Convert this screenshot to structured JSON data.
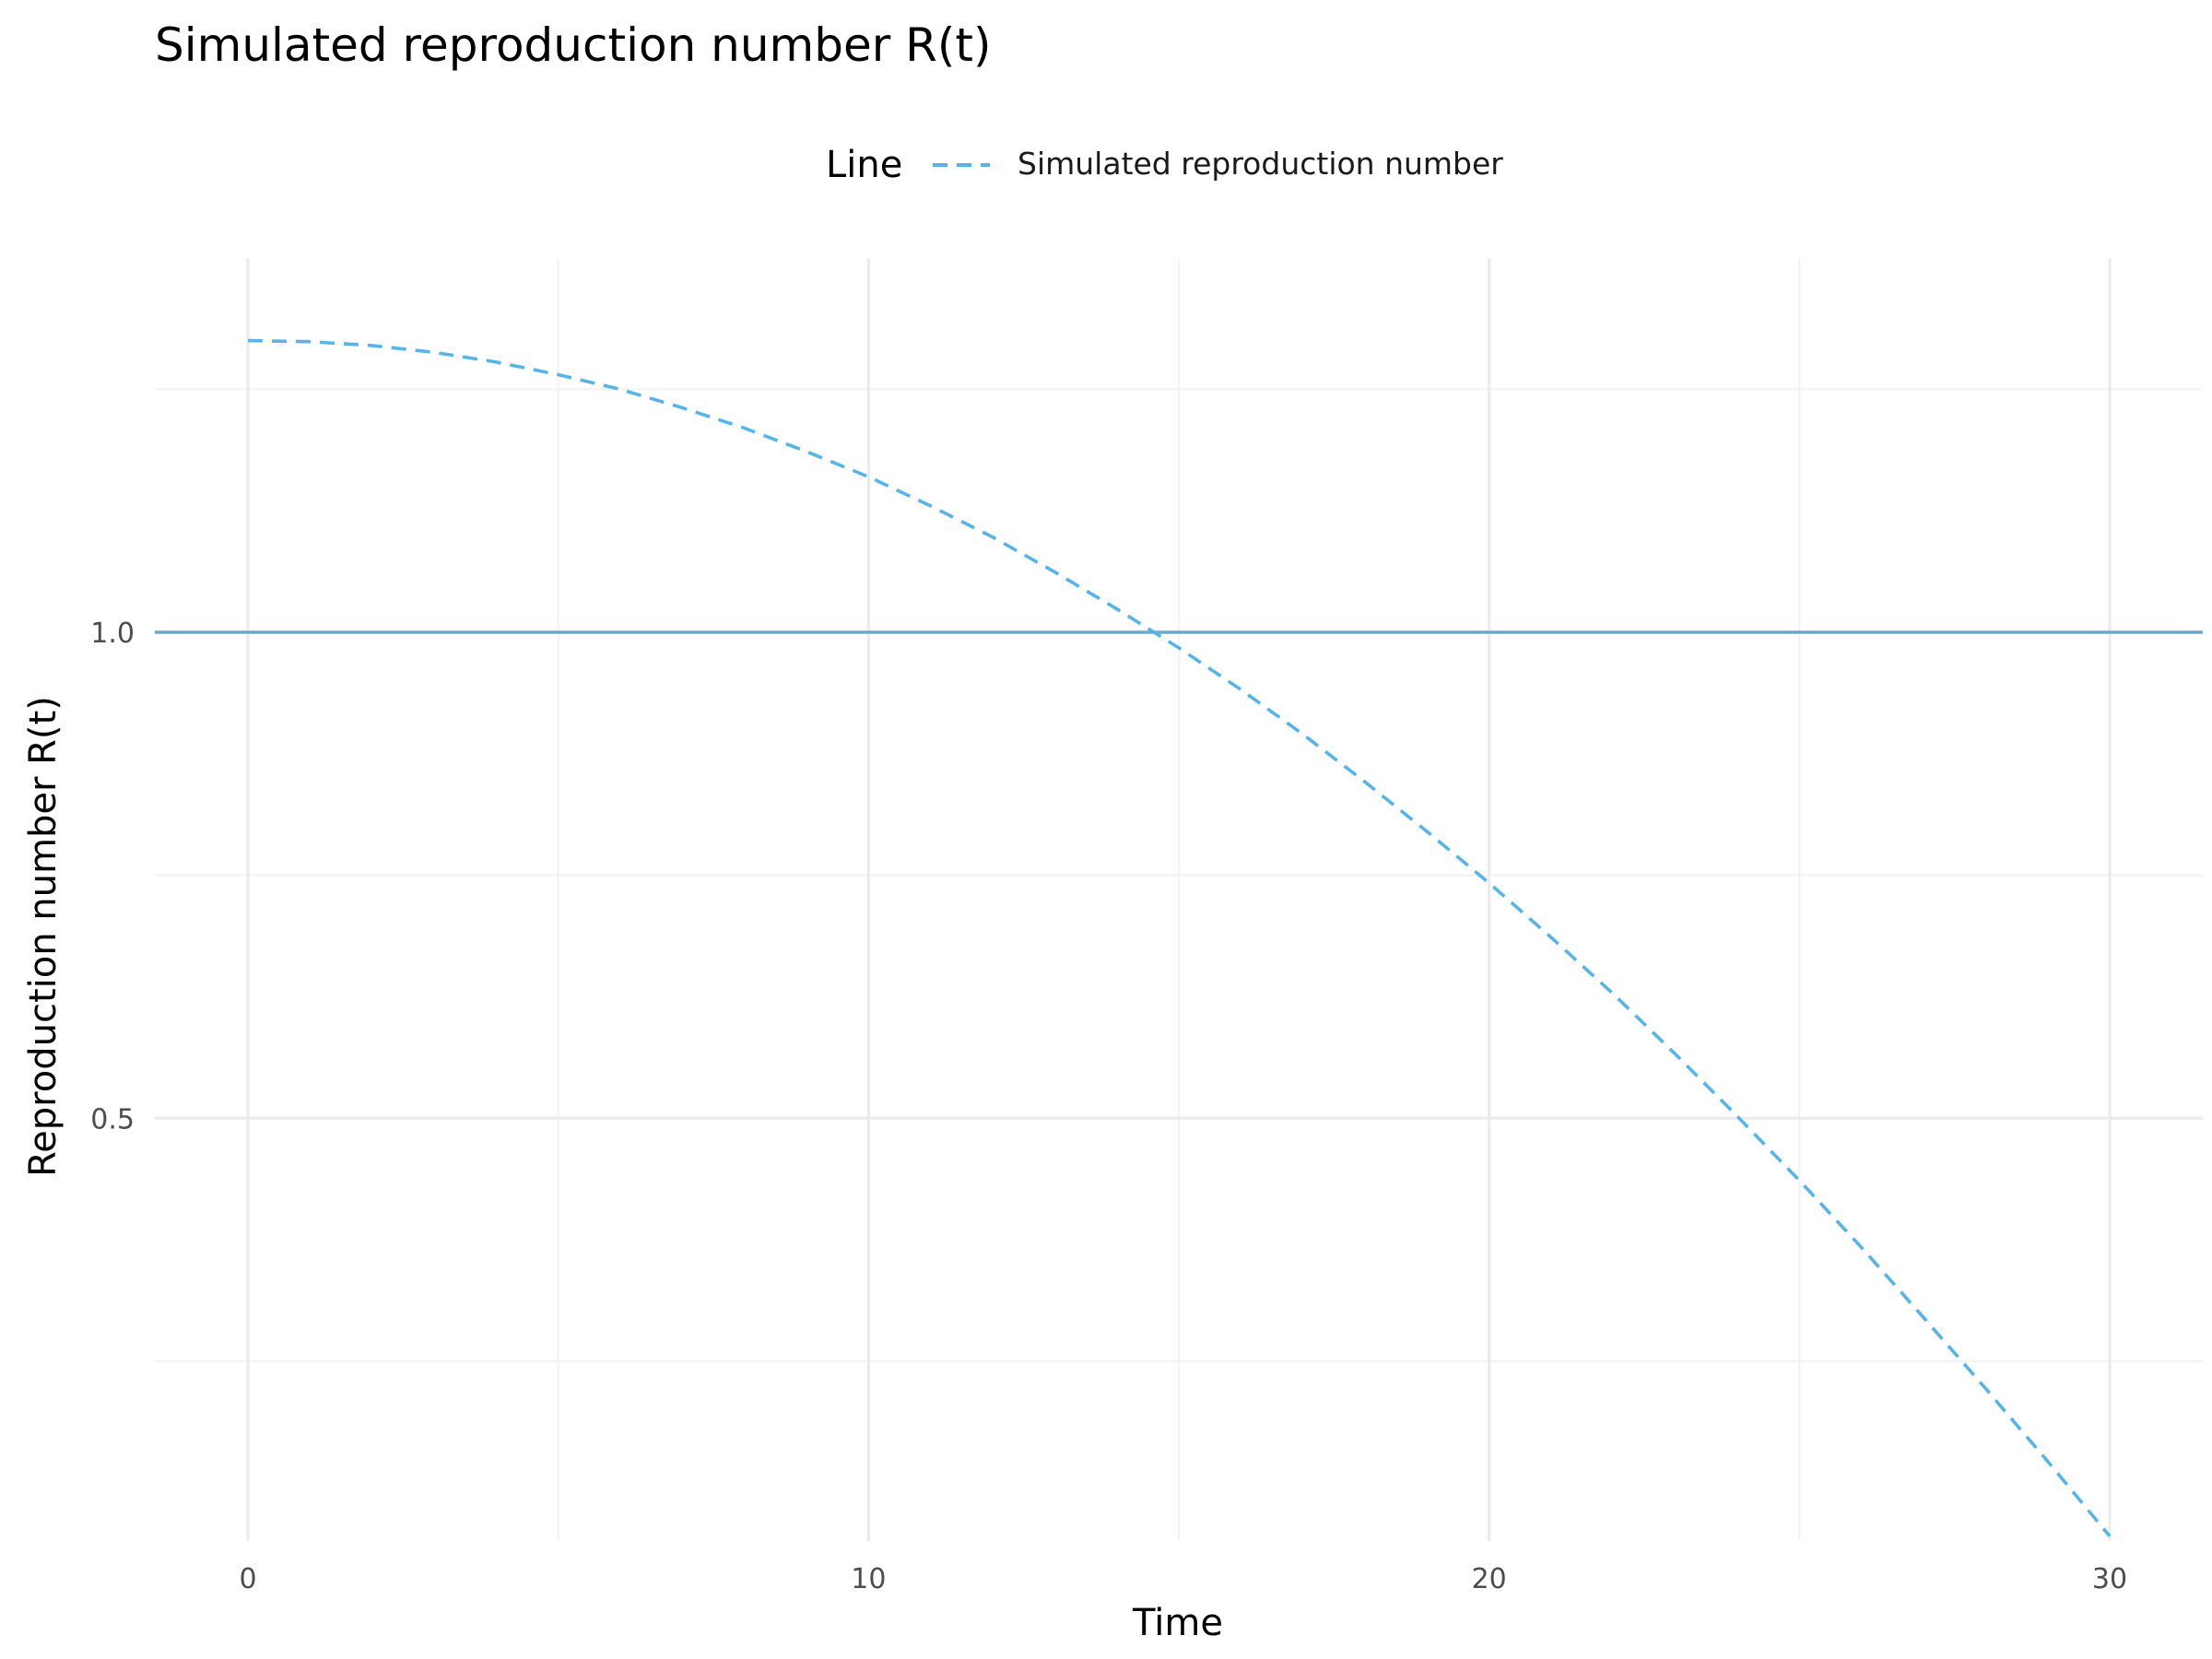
{
  "chart_data": {
    "type": "line",
    "title": "Simulated reproduction number R(t)",
    "xlabel": "Time",
    "ylabel": "Reproduction number R(t)",
    "xlim": [
      -1.5,
      31.5
    ],
    "ylim": [
      0.065,
      1.385
    ],
    "x_ticks": [
      0,
      10,
      20,
      30
    ],
    "x_tick_labels": [
      "0",
      "10",
      "20",
      "30"
    ],
    "y_ticks": [
      0.5,
      1.0
    ],
    "y_tick_labels": [
      "0.5",
      "1.0"
    ],
    "grid": true,
    "legend": {
      "title": "Line",
      "position": "top"
    },
    "reference_line": {
      "y": 1.0,
      "color": "#6aaacf"
    },
    "series": [
      {
        "name": "Simulated reproduction number",
        "style": "dashed",
        "color": "#56b4e9",
        "x": [
          0,
          1,
          2,
          3,
          4,
          5,
          6,
          7,
          8,
          9,
          10,
          11,
          12,
          13,
          14,
          15,
          16,
          17,
          18,
          19,
          20,
          21,
          22,
          23,
          24,
          25,
          26,
          27,
          28,
          29,
          30
        ],
        "y": [
          1.3,
          1.299,
          1.295,
          1.288,
          1.278,
          1.265,
          1.25,
          1.231,
          1.21,
          1.186,
          1.16,
          1.13,
          1.098,
          1.062,
          1.024,
          0.984,
          0.941,
          0.895,
          0.846,
          0.795,
          0.742,
          0.686,
          0.628,
          0.566,
          0.502,
          0.436,
          0.367,
          0.295,
          0.222,
          0.147,
          0.07
        ]
      }
    ]
  }
}
